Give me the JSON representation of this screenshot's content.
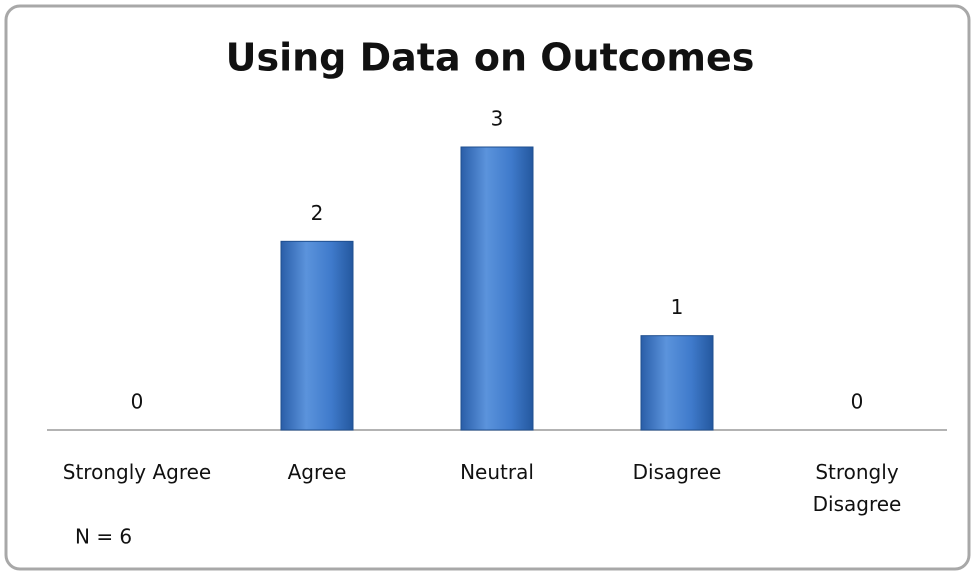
{
  "chart_data": {
    "type": "bar",
    "title": "Using Data on Outcomes",
    "categories": [
      "Strongly Agree",
      "Agree",
      "Neutral",
      "Disagree",
      "Strongly Disagree"
    ],
    "values": [
      0,
      2,
      3,
      1,
      0
    ],
    "color": "#3a75c4",
    "ylim": [
      0,
      3
    ],
    "annotation": "N = 6"
  }
}
